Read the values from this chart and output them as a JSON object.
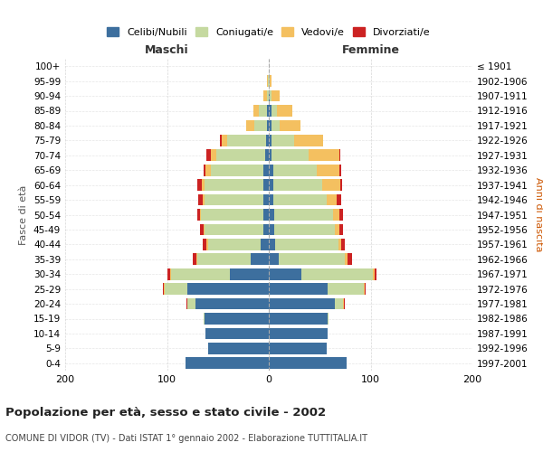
{
  "age_groups": [
    "0-4",
    "5-9",
    "10-14",
    "15-19",
    "20-24",
    "25-29",
    "30-34",
    "35-39",
    "40-44",
    "45-49",
    "50-54",
    "55-59",
    "60-64",
    "65-69",
    "70-74",
    "75-79",
    "80-84",
    "85-89",
    "90-94",
    "95-99",
    "100+"
  ],
  "birth_years": [
    "1997-2001",
    "1992-1996",
    "1987-1991",
    "1982-1986",
    "1977-1981",
    "1972-1976",
    "1967-1971",
    "1962-1966",
    "1957-1961",
    "1952-1956",
    "1947-1951",
    "1942-1946",
    "1937-1941",
    "1932-1936",
    "1927-1931",
    "1922-1926",
    "1917-1921",
    "1912-1916",
    "1907-1911",
    "1902-1906",
    "≤ 1901"
  ],
  "male_celibe": [
    82,
    60,
    62,
    63,
    72,
    80,
    38,
    18,
    8,
    5,
    5,
    5,
    5,
    5,
    4,
    3,
    2,
    2,
    0,
    0,
    0
  ],
  "male_coniugato": [
    0,
    0,
    0,
    1,
    8,
    22,
    58,
    52,
    52,
    58,
    62,
    58,
    58,
    52,
    48,
    38,
    12,
    8,
    2,
    1,
    0
  ],
  "male_vedovo": [
    0,
    0,
    0,
    0,
    0,
    1,
    1,
    1,
    1,
    1,
    1,
    2,
    3,
    5,
    5,
    5,
    8,
    5,
    3,
    1,
    0
  ],
  "male_divorziato": [
    0,
    0,
    0,
    0,
    1,
    1,
    3,
    4,
    4,
    4,
    2,
    4,
    4,
    2,
    4,
    2,
    0,
    0,
    0,
    0,
    0
  ],
  "female_celibe": [
    76,
    57,
    58,
    58,
    65,
    58,
    32,
    10,
    6,
    5,
    5,
    4,
    4,
    4,
    3,
    3,
    3,
    3,
    1,
    0,
    0
  ],
  "female_coniugata": [
    0,
    0,
    0,
    1,
    8,
    35,
    70,
    65,
    62,
    60,
    58,
    53,
    48,
    43,
    36,
    22,
    8,
    5,
    2,
    1,
    0
  ],
  "female_vedova": [
    0,
    0,
    0,
    0,
    1,
    1,
    2,
    2,
    3,
    4,
    6,
    10,
    18,
    22,
    30,
    28,
    20,
    15,
    8,
    2,
    0
  ],
  "female_divorziata": [
    0,
    0,
    0,
    0,
    1,
    1,
    2,
    5,
    4,
    4,
    4,
    4,
    2,
    2,
    1,
    0,
    0,
    0,
    0,
    0,
    0
  ],
  "color_celibe": "#3d6f9e",
  "color_coniugato": "#c5d9a0",
  "color_vedovo": "#f4c060",
  "color_divorziato": "#cc2222",
  "title_main": "Popolazione per età, sesso e stato civile - 2002",
  "title_sub": "COMUNE DI VIDOR (TV) - Dati ISTAT 1° gennaio 2002 - Elaborazione TUTTITALIA.IT",
  "xlabel_left": "Maschi",
  "xlabel_right": "Femmine",
  "ylabel_left": "Fasce di età",
  "ylabel_right": "Anni di nascita",
  "xlim": 200,
  "legend_labels": [
    "Celibi/Nubili",
    "Coniugati/e",
    "Vedovi/e",
    "Divorziati/e"
  ],
  "bg_color": "#ffffff",
  "grid_color": "#cccccc"
}
